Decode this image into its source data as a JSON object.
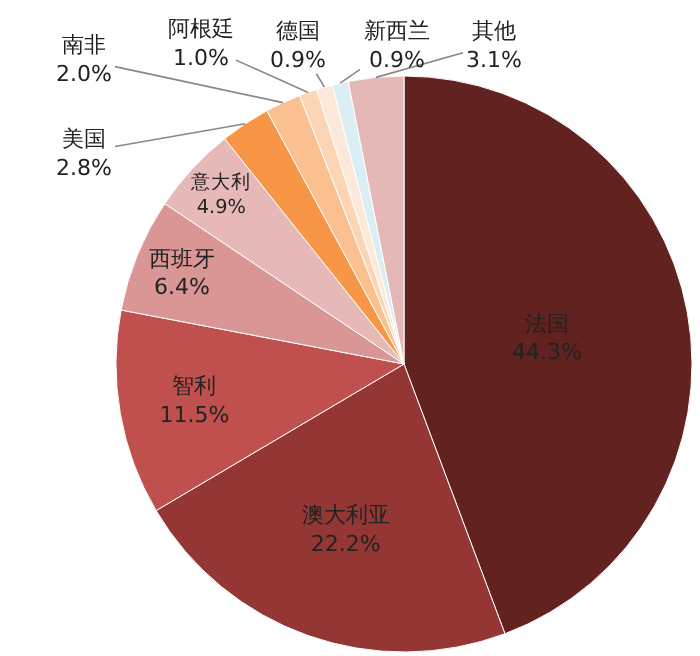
{
  "chart_data": {
    "type": "pie",
    "categories": [
      "法国",
      "澳大利亚",
      "智利",
      "西班牙",
      "意大利",
      "美国",
      "南非",
      "阿根廷",
      "德国",
      "新西兰",
      "其他"
    ],
    "values": [
      44.3,
      22.2,
      11.5,
      6.4,
      4.9,
      2.8,
      2.0,
      1.0,
      0.9,
      0.9,
      3.1
    ],
    "value_labels": [
      "44.3%",
      "22.2%",
      "11.5%",
      "6.4%",
      "4.9%",
      "2.8%",
      "2.0%",
      "1.0%",
      "0.9%",
      "0.9%",
      "3.1%"
    ],
    "colors": [
      "#62221f",
      "#943634",
      "#c0504d",
      "#d99694",
      "#e6b9b8",
      "#f79646",
      "#fac090",
      "#fcd5b5",
      "#fde9d9",
      "#dbeef4",
      "#e5b8b8"
    ],
    "legend": false
  }
}
